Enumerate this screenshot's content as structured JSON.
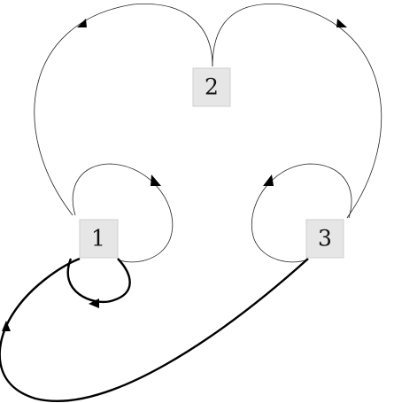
{
  "diagram": {
    "nodes": [
      {
        "id": "n2",
        "label": "2"
      },
      {
        "id": "n1",
        "label": "1"
      },
      {
        "id": "n3",
        "label": "3"
      }
    ],
    "edges": [
      {
        "id": "e-1-2",
        "from": "1",
        "to": "2",
        "style": "thin"
      },
      {
        "id": "e-3-2",
        "from": "3",
        "to": "2",
        "style": "thin"
      },
      {
        "id": "e-1-1-upper",
        "from": "1",
        "to": "1",
        "style": "thin"
      },
      {
        "id": "e-3-3-upper",
        "from": "3",
        "to": "3",
        "style": "thin"
      },
      {
        "id": "e-1-1-lower",
        "from": "1",
        "to": "1",
        "style": "thick"
      },
      {
        "id": "e-3-1",
        "from": "3",
        "to": "1",
        "style": "thick"
      }
    ]
  }
}
